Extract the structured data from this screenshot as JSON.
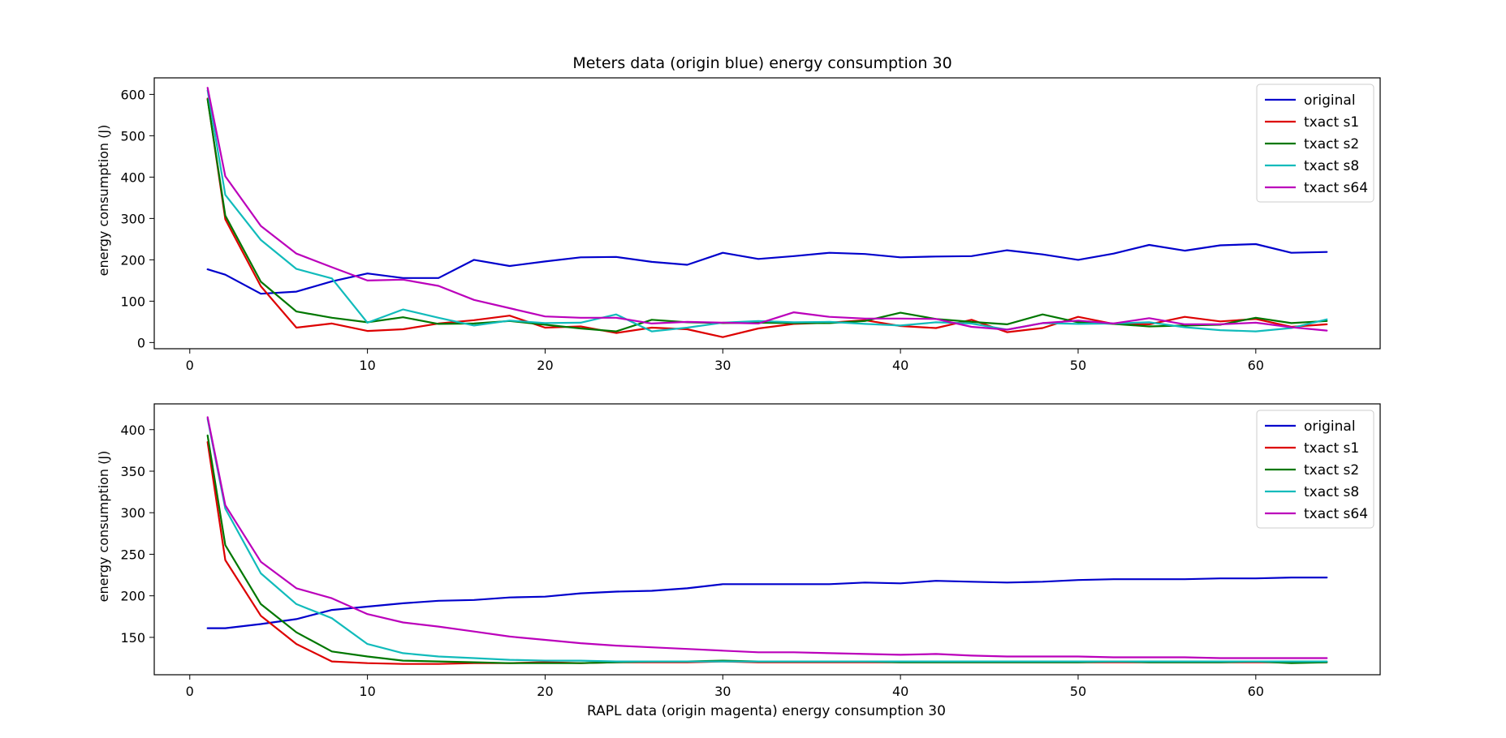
{
  "chart_data": [
    {
      "type": "line",
      "title": "Meters data (origin blue) energy consumption 30",
      "xlabel": "",
      "ylabel": "energy consumption (J)",
      "xlim": [
        -2,
        67
      ],
      "ylim": [
        -15,
        640
      ],
      "xticks": [
        0,
        10,
        20,
        30,
        40,
        50,
        60
      ],
      "yticks": [
        0,
        100,
        200,
        300,
        400,
        500,
        600
      ],
      "grid": false,
      "legend_position": "top-right",
      "x": [
        1,
        2,
        4,
        6,
        8,
        10,
        12,
        14,
        16,
        18,
        20,
        22,
        24,
        26,
        28,
        30,
        32,
        34,
        36,
        38,
        40,
        42,
        44,
        46,
        48,
        50,
        52,
        54,
        56,
        58,
        60,
        62,
        64
      ],
      "series": [
        {
          "name": "original",
          "color": "#0000cc",
          "values": [
            177,
            164,
            118,
            123,
            148,
            167,
            156,
            156,
            200,
            185,
            196,
            206,
            207,
            195,
            188,
            217,
            202,
            209,
            217,
            214,
            206,
            208,
            209,
            223,
            213,
            200,
            215,
            236,
            222,
            235,
            238,
            217,
            219
          ]
        },
        {
          "name": "txact s1",
          "color": "#dd0000",
          "values": [
            590,
            298,
            136,
            36,
            46,
            28,
            32,
            46,
            54,
            65,
            36,
            39,
            23,
            36,
            32,
            13,
            34,
            45,
            48,
            54,
            40,
            35,
            55,
            25,
            35,
            62,
            45,
            44,
            62,
            51,
            57,
            38,
            44
          ]
        },
        {
          "name": "txact s2",
          "color": "#007700",
          "values": [
            588,
            307,
            147,
            75,
            60,
            49,
            61,
            45,
            46,
            52,
            43,
            34,
            27,
            55,
            49,
            47,
            48,
            47,
            47,
            52,
            72,
            57,
            50,
            44,
            68,
            49,
            45,
            39,
            41,
            43,
            60,
            47,
            52
          ]
        },
        {
          "name": "txact s8",
          "color": "#11bbbb",
          "values": [
            610,
            357,
            248,
            178,
            155,
            48,
            80,
            60,
            41,
            53,
            47,
            48,
            68,
            27,
            36,
            48,
            52,
            49,
            50,
            45,
            41,
            49,
            46,
            31,
            47,
            45,
            46,
            49,
            37,
            30,
            27,
            35,
            56
          ]
        },
        {
          "name": "txact s64",
          "color": "#bb00bb",
          "values": [
            616,
            402,
            282,
            215,
            182,
            150,
            152,
            137,
            103,
            83,
            63,
            60,
            60,
            46,
            50,
            48,
            46,
            73,
            62,
            58,
            58,
            57,
            38,
            31,
            47,
            53,
            46,
            59,
            44,
            44,
            48,
            37,
            29
          ]
        }
      ]
    },
    {
      "type": "line",
      "title": "",
      "xlabel": "RAPL data (origin magenta) energy consumption 30",
      "ylabel": "energy consumption (J)",
      "xlim": [
        -2,
        67
      ],
      "ylim": [
        105,
        431
      ],
      "xticks": [
        0,
        10,
        20,
        30,
        40,
        50,
        60
      ],
      "yticks": [
        150,
        200,
        250,
        300,
        350,
        400
      ],
      "grid": false,
      "legend_position": "top-right",
      "x": [
        1,
        2,
        4,
        6,
        8,
        10,
        12,
        14,
        16,
        18,
        20,
        22,
        24,
        26,
        28,
        30,
        32,
        34,
        36,
        38,
        40,
        42,
        44,
        46,
        48,
        50,
        52,
        54,
        56,
        58,
        60,
        62,
        64
      ],
      "series": [
        {
          "name": "original",
          "color": "#0000cc",
          "values": [
            161,
            161,
            166,
            172,
            183,
            187,
            191,
            194,
            195,
            198,
            199,
            203,
            205,
            206,
            209,
            214,
            214,
            214,
            214,
            216,
            215,
            218,
            217,
            216,
            217,
            219,
            220,
            220,
            220,
            221,
            221,
            222,
            222
          ]
        },
        {
          "name": "txact s1",
          "color": "#dd0000",
          "values": [
            385,
            243,
            176,
            142,
            121,
            119,
            118,
            118,
            119,
            119,
            120,
            119,
            120,
            120,
            120,
            121,
            120,
            120,
            120,
            120,
            120,
            120,
            120,
            120,
            120,
            120,
            120,
            120,
            120,
            120,
            120,
            120,
            120
          ]
        },
        {
          "name": "txact s2",
          "color": "#007700",
          "values": [
            393,
            261,
            190,
            156,
            133,
            127,
            122,
            121,
            120,
            119,
            119,
            119,
            120,
            121,
            121,
            122,
            121,
            121,
            121,
            121,
            120,
            120,
            120,
            120,
            120,
            120,
            121,
            120,
            120,
            120,
            121,
            119,
            120
          ]
        },
        {
          "name": "txact s8",
          "color": "#11bbbb",
          "values": [
            413,
            305,
            227,
            190,
            173,
            142,
            131,
            127,
            125,
            123,
            122,
            122,
            121,
            121,
            121,
            121,
            121,
            121,
            121,
            121,
            121,
            121,
            121,
            121,
            121,
            121,
            121,
            121,
            121,
            121,
            121,
            121,
            121
          ]
        },
        {
          "name": "txact s64",
          "color": "#bb00bb",
          "values": [
            415,
            309,
            241,
            209,
            197,
            178,
            168,
            163,
            157,
            151,
            147,
            143,
            140,
            138,
            136,
            134,
            132,
            132,
            131,
            130,
            129,
            130,
            128,
            127,
            127,
            127,
            126,
            126,
            126,
            125,
            125,
            125,
            125
          ]
        }
      ]
    }
  ]
}
